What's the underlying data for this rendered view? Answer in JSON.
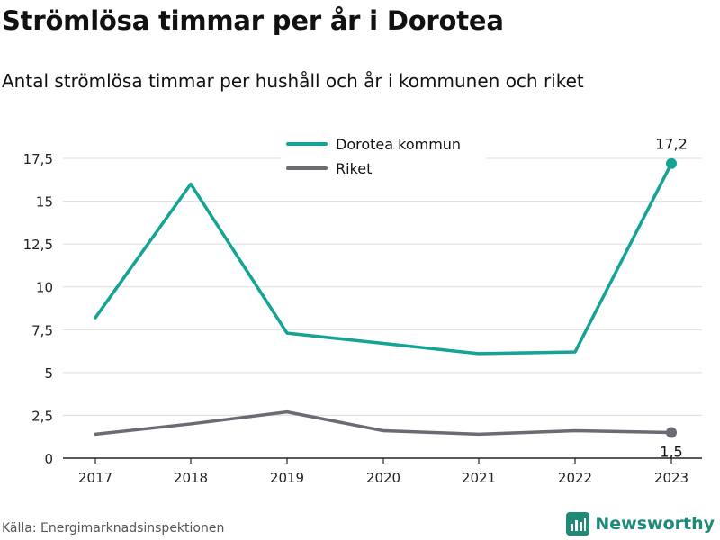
{
  "title": "Strömlösa timmar per år i Dorotea",
  "subtitle": "Antal strömlösa timmar per hushåll och år i kommunen och riket",
  "source": "Källa: Energimarknadsinspektionen",
  "brand": {
    "name": "Newsworthy",
    "icon": "newsworthy-logo-icon",
    "color": "#1f8a7a"
  },
  "chart_data": {
    "type": "line",
    "x": [
      "2017",
      "2018",
      "2019",
      "2020",
      "2021",
      "2022",
      "2023"
    ],
    "ylim": [
      0,
      17.5
    ],
    "yticks": [
      0,
      2.5,
      5,
      7.5,
      10,
      12.5,
      15,
      17.5
    ],
    "ytick_labels": [
      "0",
      "2,5",
      "5",
      "7,5",
      "10",
      "12,5",
      "15",
      "17,5"
    ],
    "grid": true,
    "legend_position": "top-center",
    "series": [
      {
        "name": "Dorotea kommun",
        "color": "#14a395",
        "values": [
          8.2,
          16.0,
          7.3,
          6.7,
          6.1,
          6.2,
          17.2
        ],
        "end_label": "17,2"
      },
      {
        "name": "Riket",
        "color": "#6b6b73",
        "values": [
          1.4,
          2.0,
          2.7,
          1.6,
          1.4,
          1.6,
          1.5
        ],
        "end_label": "1,5"
      }
    ]
  }
}
